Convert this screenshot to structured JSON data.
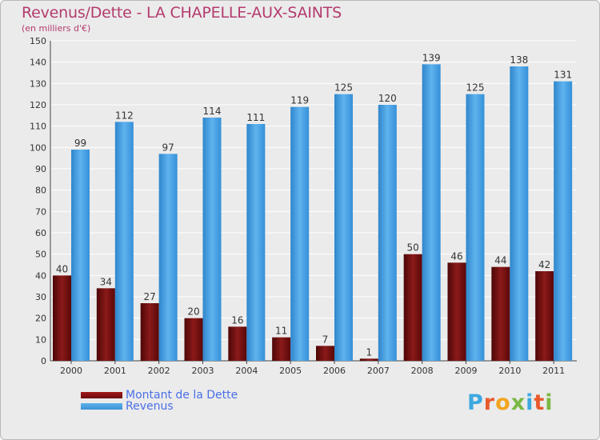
{
  "header": {
    "title": "Revenus/Dette - LA CHAPELLE-AUX-SAINTS",
    "subtitle": "(en milliers d'€)"
  },
  "colors": {
    "background": "#ebebeb",
    "title": "#b33b6e",
    "dette": "#6e0d0d",
    "revenus": "#3b93d6",
    "grid": "#ffffff",
    "legend_text": "#4a6fe6"
  },
  "legend": [
    {
      "label": "Montant de la Dette",
      "color": "#6e0d0d"
    },
    {
      "label": "Revenus",
      "color": "#3b93d6"
    }
  ],
  "logo": {
    "text": "Proxiti",
    "letter_colors": [
      "#3ea8e0",
      "#e85a2c",
      "#f2a51f",
      "#7bb843",
      "#3ea8e0",
      "#e85a2c",
      "#7bb843"
    ]
  },
  "chart_data": {
    "type": "bar",
    "categories": [
      "2000",
      "2001",
      "2002",
      "2003",
      "2004",
      "2005",
      "2006",
      "2007",
      "2008",
      "2009",
      "2010",
      "2011"
    ],
    "series": [
      {
        "name": "Montant de la Dette",
        "values": [
          40,
          34,
          27,
          20,
          16,
          11,
          7,
          1,
          50,
          46,
          44,
          42
        ]
      },
      {
        "name": "Revenus",
        "values": [
          99,
          112,
          97,
          114,
          111,
          119,
          125,
          120,
          139,
          125,
          138,
          131
        ]
      }
    ],
    "title": "Revenus/Dette - LA CHAPELLE-AUX-SAINTS",
    "subtitle": "(en milliers d'€)",
    "ylim": [
      0,
      150
    ],
    "yticks": [
      0,
      10,
      20,
      30,
      40,
      50,
      60,
      70,
      80,
      90,
      100,
      110,
      120,
      130,
      140,
      150
    ],
    "grid": true,
    "legend_position": "bottom-left"
  }
}
